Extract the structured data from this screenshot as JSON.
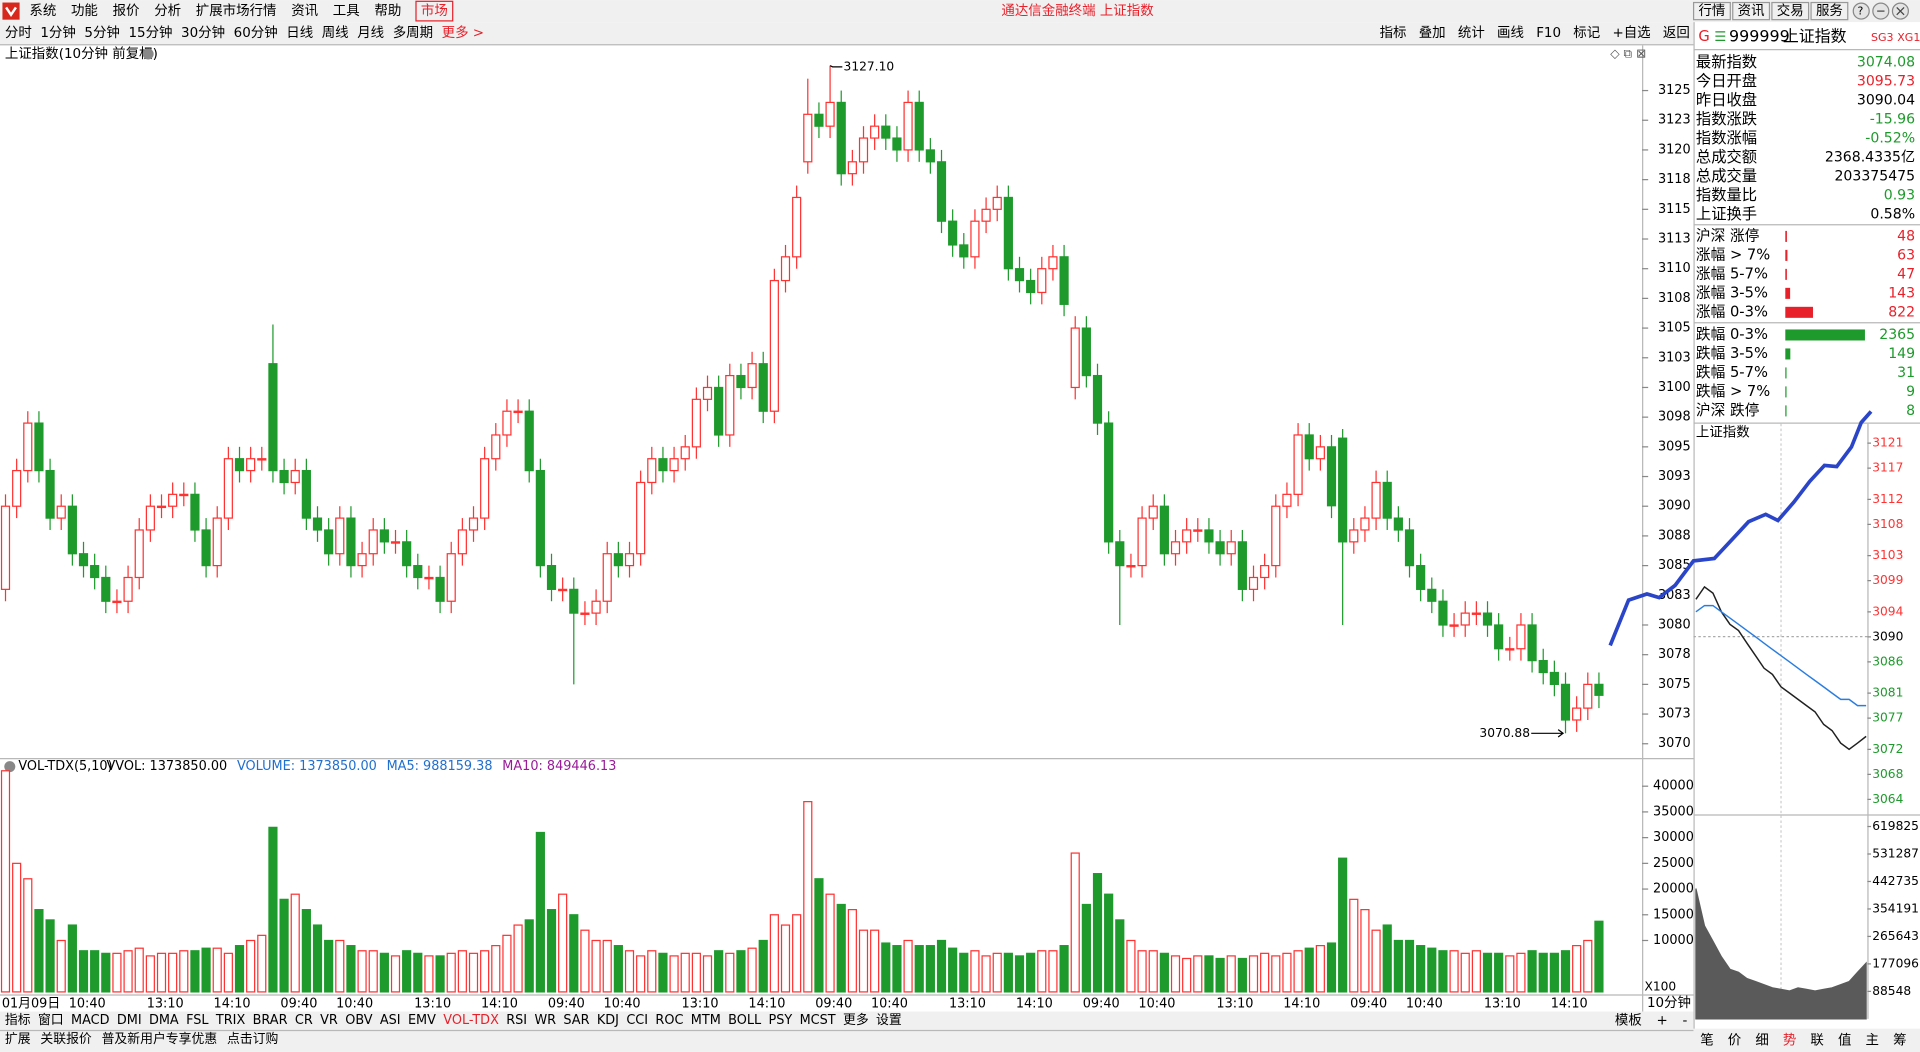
{
  "menu": [
    "系统",
    "功能",
    "报价",
    "分析",
    "扩展市场行情",
    "资讯",
    "工具",
    "帮助"
  ],
  "menu_active": "市场",
  "window_title": "通达信金融终端 上证指数",
  "top_buttons": [
    "行情",
    "资讯",
    "交易",
    "服务"
  ],
  "periods": [
    "分时",
    "1分钟",
    "5分钟",
    "15分钟",
    "30分钟",
    "60分钟",
    "日线",
    "周线",
    "月线",
    "多周期"
  ],
  "more": "更多 >",
  "tools": [
    "指标",
    "叠加",
    "统计",
    "画线",
    "F10",
    "标记",
    "+自选",
    "返回"
  ],
  "chart_data": [
    {
      "type": "candlestick",
      "title": "上证指数(10分钟 前复权)",
      "period_label": "10分钟",
      "up_color": "#ff3232",
      "down_color": "#1e9a2c",
      "categories": [
        "01月09日",
        null,
        null,
        null,
        null,
        null,
        "10:40",
        null,
        null,
        null,
        null,
        null,
        null,
        "13:10",
        null,
        null,
        null,
        null,
        null,
        "14:10",
        null,
        null,
        null,
        null,
        null,
        "09:40",
        null,
        null,
        null,
        null,
        "10:40",
        null,
        null,
        null,
        null,
        null,
        null,
        "13:10",
        null,
        null,
        null,
        null,
        null,
        "14:10",
        null,
        null,
        null,
        null,
        null,
        "09:40",
        null,
        null,
        null,
        null,
        "10:40",
        null,
        null,
        null,
        null,
        null,
        null,
        "13:10",
        null,
        null,
        null,
        null,
        null,
        "14:10",
        null,
        null,
        null,
        null,
        null,
        "09:40",
        null,
        null,
        null,
        null,
        "10:40",
        null,
        null,
        null,
        null,
        null,
        null,
        "13:10",
        null,
        null,
        null,
        null,
        null,
        "14:10",
        null,
        null,
        null,
        null,
        null,
        "09:40",
        null,
        null,
        null,
        null,
        "10:40",
        null,
        null,
        null,
        null,
        null,
        null,
        "13:10",
        null,
        null,
        null,
        null,
        null,
        "14:10",
        null,
        null,
        null,
        null,
        null,
        "09:40",
        null,
        null,
        null,
        null,
        "10:40",
        null,
        null,
        null,
        null,
        null,
        null,
        "13:10",
        null,
        null,
        null,
        null,
        null,
        "14:10",
        null,
        null,
        null,
        null
      ],
      "open": [
        3083,
        3090,
        3093,
        3097,
        3093,
        3089,
        3090,
        3086,
        3085,
        3084,
        3082,
        3082,
        3084,
        3088,
        3090,
        3090,
        3091,
        3091,
        3088,
        3085,
        3089,
        3094,
        3093,
        3094,
        3102,
        3093,
        3092,
        3093,
        3089,
        3088,
        3086,
        3089,
        3085,
        3086,
        3088,
        3087,
        3087,
        3085,
        3084,
        3084,
        3082,
        3086,
        3088,
        3089,
        3094,
        3096,
        3098,
        3098,
        3093,
        3085,
        3083,
        3083,
        3081,
        3081,
        3082,
        3086,
        3085,
        3086,
        3092,
        3094,
        3093,
        3094,
        3095,
        3099,
        3100,
        3096,
        3101,
        3100,
        3102,
        3098,
        3109,
        3111,
        3119,
        3123,
        3122,
        3124,
        3118,
        3119,
        3121,
        3122,
        3121,
        3120,
        3124,
        3120,
        3119,
        3114,
        3112,
        3111,
        3114,
        3115,
        3116,
        3110,
        3109,
        3108,
        3110,
        3111,
        3100,
        3105,
        3101,
        3097,
        3087,
        3085,
        3085,
        3089,
        3090,
        3086,
        3087,
        3088,
        3088,
        3087,
        3086,
        3087,
        3083,
        3084,
        3085,
        3090,
        3091,
        3096,
        3094,
        3095,
        3095.73,
        3087,
        3088,
        3089,
        3092,
        3089,
        3088,
        3085,
        3083,
        3082,
        3080,
        3080,
        3081,
        3081,
        3080,
        3078,
        3078,
        3080,
        3077,
        3076,
        3075,
        3072,
        3073,
        3075
      ],
      "high": [
        3091,
        3094,
        3098,
        3098,
        3094,
        3091,
        3091,
        3087,
        3086,
        3085,
        3083,
        3085,
        3089,
        3091,
        3091,
        3092,
        3092,
        3092,
        3089,
        3090,
        3095,
        3095,
        3095,
        3095,
        3105.3,
        3094,
        3094,
        3094,
        3090,
        3089,
        3090,
        3090,
        3087,
        3089,
        3089,
        3088,
        3088,
        3086,
        3085,
        3085,
        3087,
        3089,
        3090,
        3095,
        3097,
        3099,
        3099,
        3099,
        3094,
        3086,
        3084,
        3084,
        3082,
        3083,
        3087,
        3087,
        3087,
        3093,
        3095,
        3095,
        3095,
        3096,
        3100,
        3101,
        3101,
        3102,
        3102,
        3103,
        3103,
        3110,
        3112,
        3117,
        3126,
        3124,
        3127.1,
        3125,
        3120,
        3122,
        3123,
        3123,
        3122,
        3125,
        3125,
        3121,
        3120,
        3115,
        3113,
        3115,
        3116,
        3117,
        3117,
        3111,
        3110,
        3111,
        3112,
        3112,
        3106,
        3106,
        3102,
        3098,
        3088,
        3086,
        3090,
        3091,
        3091,
        3088,
        3089,
        3089,
        3089,
        3088,
        3088,
        3088,
        3085,
        3086,
        3091,
        3092,
        3097,
        3097,
        3096,
        3096,
        3096.5,
        3089,
        3090,
        3093,
        3093,
        3090,
        3089,
        3086,
        3084,
        3083,
        3081,
        3082,
        3082,
        3082,
        3081,
        3079,
        3081,
        3081,
        3078,
        3077,
        3076,
        3074,
        3076,
        3076
      ],
      "low": [
        3082,
        3089,
        3092,
        3092,
        3088,
        3088,
        3085,
        3084,
        3083,
        3081,
        3081,
        3081,
        3083,
        3087,
        3089,
        3089,
        3090,
        3087,
        3084,
        3084,
        3088,
        3092,
        3092,
        3093,
        3092,
        3091,
        3091,
        3088,
        3087,
        3085,
        3085,
        3084,
        3084,
        3085,
        3086,
        3086,
        3084,
        3083,
        3083,
        3081,
        3081,
        3085,
        3087,
        3088,
        3093,
        3095,
        3097,
        3092,
        3084,
        3082,
        3082,
        3075,
        3080,
        3080,
        3081,
        3084,
        3084,
        3085,
        3091,
        3092,
        3092,
        3093,
        3094,
        3098,
        3095,
        3095,
        3099,
        3099,
        3097,
        3097,
        3108,
        3110,
        3118,
        3121,
        3121,
        3117,
        3117,
        3118,
        3120,
        3120,
        3119,
        3119,
        3119,
        3118,
        3113,
        3111,
        3110,
        3110,
        3113,
        3114,
        3109,
        3108,
        3107,
        3107,
        3109,
        3106,
        3099,
        3100,
        3096,
        3086,
        3080,
        3084,
        3084,
        3088,
        3085,
        3085,
        3086,
        3087,
        3086,
        3085,
        3085,
        3082,
        3082,
        3083,
        3084,
        3089,
        3090,
        3093,
        3093,
        3089,
        3080,
        3086,
        3087,
        3088,
        3088,
        3087,
        3084,
        3082,
        3081,
        3079,
        3079,
        3079,
        3080,
        3079,
        3077,
        3077,
        3077,
        3076,
        3075,
        3074,
        3070.88,
        3071,
        3072,
        3073
      ],
      "close": [
        3090,
        3093,
        3097,
        3093,
        3089,
        3090,
        3086,
        3085,
        3084,
        3082,
        3082,
        3084,
        3088,
        3090,
        3090,
        3091,
        3091,
        3088,
        3085,
        3089,
        3094,
        3093,
        3094,
        3094,
        3093,
        3092,
        3093,
        3089,
        3088,
        3086,
        3089,
        3085,
        3086,
        3088,
        3087,
        3087,
        3085,
        3084,
        3084,
        3082,
        3086,
        3088,
        3089,
        3094,
        3096,
        3098,
        3098,
        3093,
        3085,
        3083,
        3083,
        3081,
        3081,
        3082,
        3086,
        3085,
        3086,
        3092,
        3094,
        3093,
        3094,
        3095,
        3099,
        3100,
        3096,
        3101,
        3100,
        3102,
        3098,
        3109,
        3111,
        3116,
        3123,
        3122,
        3124,
        3118,
        3119,
        3121,
        3122,
        3121,
        3120,
        3124,
        3120,
        3119,
        3114,
        3112,
        3111,
        3114,
        3115,
        3116,
        3110,
        3109,
        3108,
        3110,
        3111,
        3107,
        3105,
        3101,
        3097,
        3087,
        3085,
        3085,
        3089,
        3090,
        3086,
        3087,
        3088,
        3088,
        3087,
        3086,
        3087,
        3083,
        3084,
        3085,
        3090,
        3091,
        3096,
        3094,
        3095,
        3090.04,
        3087,
        3088,
        3089,
        3092,
        3089,
        3088,
        3085,
        3083,
        3082,
        3080,
        3080,
        3081,
        3081,
        3080,
        3078,
        3078,
        3080,
        3077,
        3076,
        3075,
        3072,
        3073,
        3075,
        3074.08
      ],
      "ylim": [
        3068.9,
        3128.7
      ],
      "yticks": [
        3070,
        {
          "value": 3072.5,
          "label": "3073"
        },
        3075,
        {
          "value": 3077.5,
          "label": "3078"
        },
        3080,
        {
          "value": 3082.5,
          "label": "3083"
        },
        3085,
        {
          "value": 3087.5,
          "label": "3088"
        },
        3090,
        {
          "value": 3092.5,
          "label": "3093"
        },
        3095,
        {
          "value": 3097.5,
          "label": "3098"
        },
        3100,
        {
          "value": 3102.5,
          "label": "3103"
        },
        3105,
        {
          "value": 3107.5,
          "label": "3108"
        },
        3110,
        {
          "value": 3112.5,
          "label": "3113"
        },
        3115,
        {
          "value": 3117.5,
          "label": "3118"
        },
        3120,
        {
          "value": 3122.5,
          "label": "3123"
        },
        3125
      ],
      "annotations": [
        {
          "value": 3127.1,
          "label": "3127.10"
        },
        {
          "value": 3070.88,
          "label": "3070.88"
        }
      ]
    },
    {
      "type": "bar",
      "title": "VOL-TDX(5,10)",
      "legend": [
        "VVOL: 1373850.00",
        "VOLUME: 1373850.00",
        "MA5: 988159.38",
        "MA10: 849446.13"
      ],
      "legend_colors": [
        "#000000",
        "#1f6fd0",
        "#1f6fd0",
        "#9a1a9a"
      ],
      "unit_label": "X100",
      "values": [
        43000,
        25000,
        22000,
        16000,
        14000,
        10000,
        13000,
        8000,
        8000,
        7500,
        7500,
        8000,
        8500,
        7000,
        7500,
        7500,
        8000,
        8000,
        8500,
        8500,
        7500,
        9000,
        10000,
        11000,
        32000,
        18000,
        19000,
        16000,
        13000,
        10000,
        10000,
        9000,
        8000,
        8000,
        7500,
        7000,
        8000,
        7500,
        7000,
        7000,
        7500,
        8000,
        7500,
        8000,
        9000,
        11000,
        13000,
        14000,
        31000,
        16000,
        19000,
        15000,
        12000,
        10000,
        10000,
        9000,
        8000,
        7000,
        8000,
        7500,
        7000,
        7500,
        7500,
        7000,
        8000,
        7500,
        8000,
        8500,
        10000,
        15000,
        13000,
        15000,
        37000,
        22000,
        19000,
        17000,
        16000,
        12000,
        12000,
        9500,
        9000,
        10000,
        9000,
        9000,
        10000,
        8500,
        7500,
        8000,
        7000,
        7500,
        7500,
        7000,
        7500,
        8000,
        8000,
        9000,
        27000,
        17000,
        23000,
        19000,
        14000,
        10000,
        8000,
        8000,
        7500,
        7000,
        6500,
        7000,
        7000,
        6500,
        7000,
        6500,
        7000,
        7500,
        7000,
        7500,
        8000,
        8500,
        9000,
        9500,
        26000,
        18000,
        16000,
        12000,
        13000,
        10000,
        10000,
        9000,
        8500,
        8000,
        8000,
        7500,
        8000,
        7500,
        7500,
        7000,
        7500,
        8000,
        7500,
        7500,
        8000,
        9000,
        10000,
        13738.5
      ],
      "ylim": [
        0,
        44762
      ],
      "yticks": [
        10000,
        15000,
        20000,
        25000,
        30000,
        35000,
        40000
      ]
    },
    {
      "type": "line",
      "title": "上证指数",
      "base_line": 3090.04,
      "series": [
        {
          "color": "#202020",
          "values": [
            3096,
            3098,
            3097,
            3094,
            3092,
            3091,
            3089,
            3087,
            3085,
            3084,
            3082,
            3081,
            3080,
            3079,
            3078,
            3076,
            3075,
            3073,
            3072,
            3073,
            3074.08
          ]
        },
        {
          "color": "#2a7de0",
          "values": [
            3094,
            3095,
            3095,
            3094,
            3093,
            3092,
            3091,
            3090,
            3089,
            3088,
            3087,
            3086,
            3085,
            3084,
            3083,
            3082,
            3081,
            3080,
            3080,
            3079,
            3079
          ]
        }
      ],
      "ylim": [
        3061.6,
        3124.1
      ],
      "yticks": [
        3121,
        3117,
        3112,
        3108,
        3103,
        3099,
        3094,
        3090,
        3086,
        3081,
        3077,
        3072,
        3068,
        3064
      ]
    },
    {
      "type": "area",
      "color": "#5a5a5a",
      "values": [
        420000,
        300000,
        250000,
        200000,
        160000,
        150000,
        130000,
        120000,
        110000,
        100000,
        95000,
        90000,
        100000,
        95000,
        90000,
        95000,
        100000,
        110000,
        120000,
        150000,
        180000
      ],
      "ylim": [
        0,
        659000
      ],
      "yticks": [
        619825,
        531287,
        442735,
        354191,
        265643,
        177096,
        88548
      ]
    }
  ],
  "indicator_tabs": [
    "指标",
    "窗口",
    "MACD",
    "DMI",
    "DMA",
    "FSL",
    "TRIX",
    "BRAR",
    "CR",
    "VR",
    "OBV",
    "ASI",
    "EMV",
    "VOL-TDX",
    "RSI",
    "WR",
    "SAR",
    "KDJ",
    "CCI",
    "ROC",
    "MTM",
    "BOLL",
    "PSY",
    "MCST",
    "更多",
    "设置"
  ],
  "indicator_active": "VOL-TDX",
  "template_tabs": [
    "模板",
    "+",
    "-"
  ],
  "status": [
    "扩展",
    "关联报价",
    "普及新用户专享优惠",
    "点击订购"
  ],
  "quote": {
    "marker": "G",
    "code": "999999",
    "name": "上证指数",
    "tags": [
      "SG3",
      "XG1"
    ],
    "rows": [
      {
        "label": "最新指数",
        "value": "3074.08",
        "color": "#1e9a2c"
      },
      {
        "label": "今日开盘",
        "value": "3095.73",
        "color": "#e8202a"
      },
      {
        "label": "昨日收盘",
        "value": "3090.04",
        "color": "#000000"
      },
      {
        "label": "指数涨跌",
        "value": "-15.96",
        "color": "#1e9a2c"
      },
      {
        "label": "指数涨幅",
        "value": "-0.52%",
        "color": "#1e9a2c"
      },
      {
        "label": "总成交额",
        "value": "2368.4335亿",
        "color": "#000000"
      },
      {
        "label": "总成交量",
        "value": "203375475",
        "color": "#000000"
      },
      {
        "label": "指数量比",
        "value": "0.93",
        "color": "#1e9a2c"
      },
      {
        "label": "上证换手",
        "value": "0.58%",
        "color": "#000000"
      }
    ],
    "breadth": [
      {
        "label": "沪深 涨停",
        "count": 48,
        "color": "#e8202a"
      },
      {
        "label": "涨幅 > 7%",
        "count": 63,
        "color": "#e8202a"
      },
      {
        "label": "涨幅 5-7%",
        "count": 47,
        "color": "#e8202a"
      },
      {
        "label": "涨幅 3-5%",
        "count": 143,
        "color": "#e8202a"
      },
      {
        "label": "涨幅 0-3%",
        "count": 822,
        "color": "#e8202a"
      },
      {
        "label": "跌幅 0-3%",
        "count": 2365,
        "color": "#1e9a2c"
      },
      {
        "label": "跌幅 3-5%",
        "count": 149,
        "color": "#1e9a2c"
      },
      {
        "label": "跌幅 5-7%",
        "count": 31,
        "color": "#1e9a2c"
      },
      {
        "label": "跌幅 > 7%",
        "count": 9,
        "color": "#1e9a2c"
      },
      {
        "label": "沪深 跌停",
        "count": 8,
        "color": "#1e9a2c"
      }
    ]
  },
  "side_tabs": [
    "笔",
    "价",
    "细",
    "势",
    "联",
    "值",
    "主",
    "筹"
  ],
  "side_active": "势"
}
